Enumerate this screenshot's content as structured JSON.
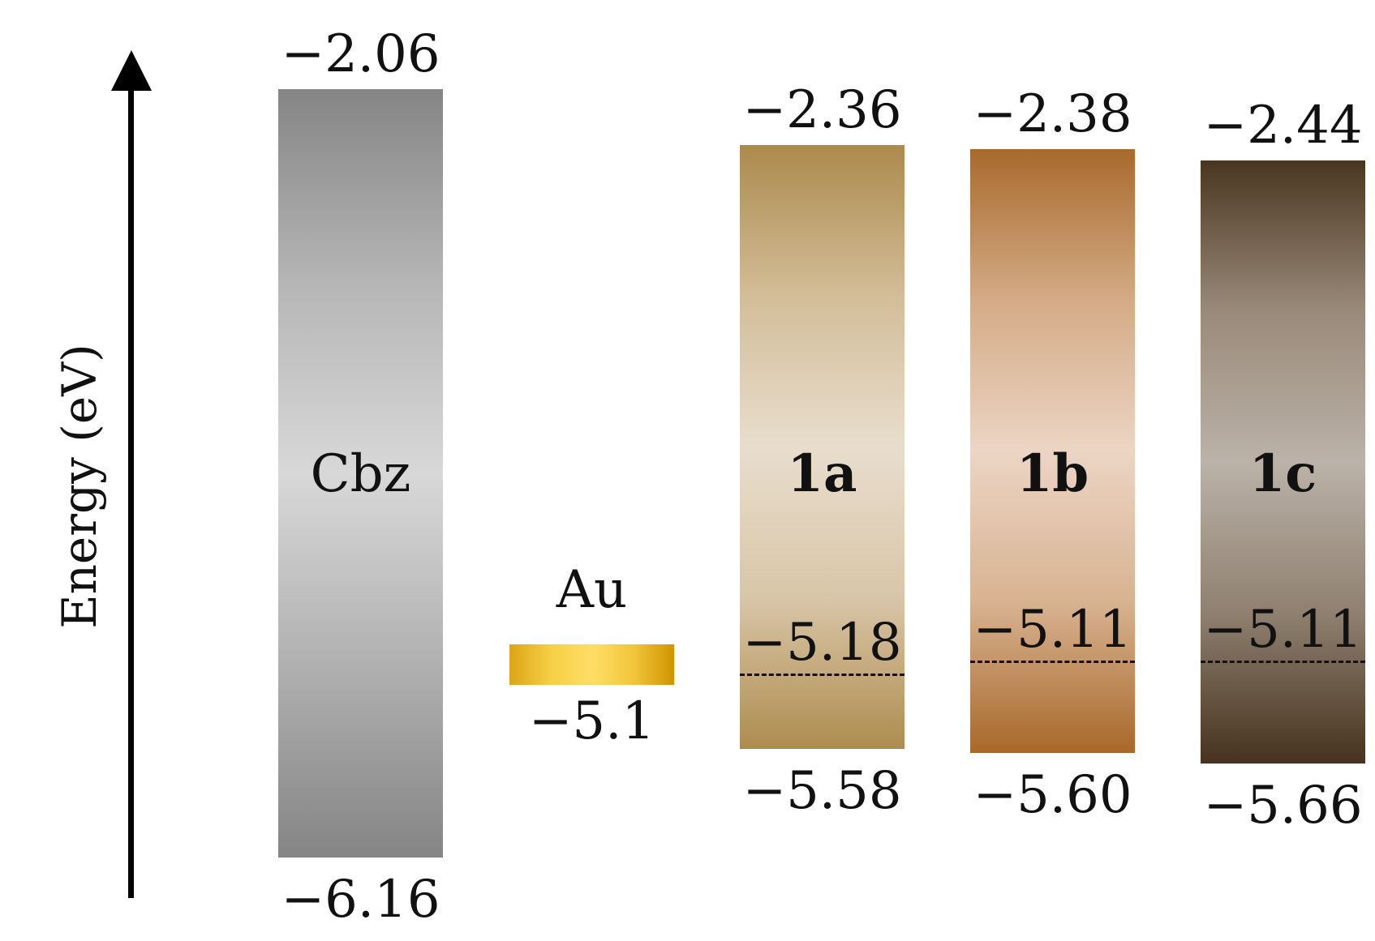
{
  "axis": {
    "title": "Energy (eV)"
  },
  "materials": [
    {
      "id": "cbz",
      "name": "Cbz",
      "bold": false,
      "lumo": -2.06,
      "homo": -6.16,
      "lumo_label": "−2.06",
      "homo_label": "−6.16",
      "fermi": null,
      "fermi_label": "",
      "colors": [
        "#858585",
        "#b5b5b5",
        "#d8d8d8",
        "#b0b0b0",
        "#858585"
      ]
    },
    {
      "id": "au",
      "name": "Au",
      "bold": false,
      "work_function": -5.1,
      "work_function_label": "−5.1",
      "colors": [
        "#dca515",
        "#f6cf45",
        "#ffde66",
        "#f2c63c",
        "#cf9500"
      ]
    },
    {
      "id": "1a",
      "name": "1a",
      "bold": true,
      "lumo": -2.36,
      "homo": -5.58,
      "lumo_label": "−2.36",
      "homo_label": "−5.58",
      "fermi": -5.18,
      "fermi_label": "−5.18",
      "colors": [
        "#ab8a4c",
        "#d3bd98",
        "#e8ddcd",
        "#d9c6a8",
        "#ad8c4e"
      ]
    },
    {
      "id": "1b",
      "name": "1b",
      "bold": true,
      "lumo": -2.38,
      "homo": -5.6,
      "lumo_label": "−2.38",
      "homo_label": "−5.60",
      "fermi": -5.11,
      "fermi_label": "−5.11",
      "colors": [
        "#a86a2c",
        "#d4ab86",
        "#ecd5c4",
        "#d8b391",
        "#a8682a"
      ]
    },
    {
      "id": "1c",
      "name": "1c",
      "bold": true,
      "lumo": -2.44,
      "homo": -5.66,
      "lumo_label": "−2.44",
      "homo_label": "−5.66",
      "fermi": -5.11,
      "fermi_label": "−5.11",
      "colors": [
        "#4a3620",
        "#9a8a7a",
        "#bbb2a9",
        "#8f8070",
        "#46321e"
      ]
    }
  ]
}
